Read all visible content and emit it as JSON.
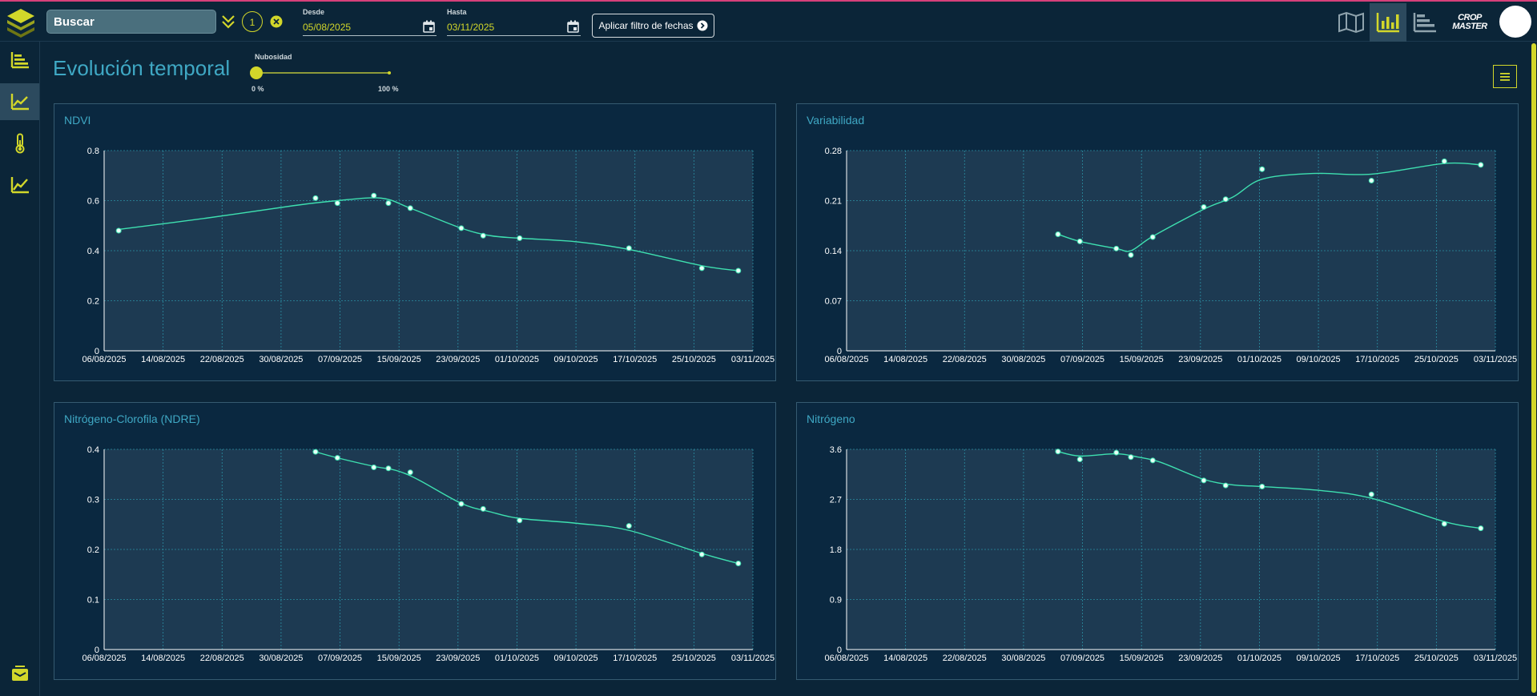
{
  "header": {
    "search_placeholder": "Buscar",
    "selection_count": "1",
    "date_from": {
      "label": "Desde",
      "value": "05/08/2025"
    },
    "date_to": {
      "label": "Hasta",
      "value": "03/11/2025"
    },
    "apply_label": "Aplicar filtro de fechas",
    "brand_line1": "CROP",
    "brand_line2": "MASTER"
  },
  "page": {
    "title": "Evolución temporal",
    "cloud_slider": {
      "label": "Nubosidad",
      "min_label": "0 %",
      "max_label": "100 %",
      "value": 0
    }
  },
  "colors": {
    "accent": "#d2d72a",
    "line": "#3ee0b0",
    "title": "#3fa8c4",
    "plot_bg": "#1d3a52"
  },
  "chart_data": [
    {
      "type": "line",
      "title": "NDVI",
      "x_ticks": [
        "06/08/2025",
        "14/08/2025",
        "22/08/2025",
        "30/08/2025",
        "07/09/2025",
        "15/09/2025",
        "23/09/2025",
        "01/10/2025",
        "09/10/2025",
        "17/10/2025",
        "25/10/2025",
        "03/11/2025"
      ],
      "y_ticks": [
        "0",
        "0.2",
        "0.4",
        "0.6",
        "0.8"
      ],
      "xlim": [
        "06/08/2025",
        "03/11/2025"
      ],
      "ylim": [
        0,
        0.8
      ],
      "points": [
        {
          "x": "08/08/2025",
          "y": 0.48
        },
        {
          "x": "04/09/2025",
          "y": 0.61
        },
        {
          "x": "07/09/2025",
          "y": 0.59
        },
        {
          "x": "12/09/2025",
          "y": 0.62
        },
        {
          "x": "14/09/2025",
          "y": 0.59
        },
        {
          "x": "17/09/2025",
          "y": 0.57
        },
        {
          "x": "24/09/2025",
          "y": 0.49
        },
        {
          "x": "27/09/2025",
          "y": 0.46
        },
        {
          "x": "02/10/2025",
          "y": 0.45
        },
        {
          "x": "17/10/2025",
          "y": 0.41
        },
        {
          "x": "27/10/2025",
          "y": 0.33
        },
        {
          "x": "01/11/2025",
          "y": 0.32
        }
      ],
      "trend": [
        {
          "x": "08/08/2025",
          "y": 0.485
        },
        {
          "x": "20/08/2025",
          "y": 0.53
        },
        {
          "x": "01/09/2025",
          "y": 0.58
        },
        {
          "x": "07/09/2025",
          "y": 0.6
        },
        {
          "x": "13/09/2025",
          "y": 0.61
        },
        {
          "x": "17/09/2025",
          "y": 0.57
        },
        {
          "x": "24/09/2025",
          "y": 0.49
        },
        {
          "x": "28/09/2025",
          "y": 0.46
        },
        {
          "x": "02/10/2025",
          "y": 0.45
        },
        {
          "x": "10/10/2025",
          "y": 0.435
        },
        {
          "x": "17/10/2025",
          "y": 0.405
        },
        {
          "x": "27/10/2025",
          "y": 0.34
        },
        {
          "x": "01/11/2025",
          "y": 0.32
        }
      ]
    },
    {
      "type": "line",
      "title": "Variabilidad",
      "x_ticks": [
        "06/08/2025",
        "14/08/2025",
        "22/08/2025",
        "30/08/2025",
        "07/09/2025",
        "15/09/2025",
        "23/09/2025",
        "01/10/2025",
        "09/10/2025",
        "17/10/2025",
        "25/10/2025",
        "03/11/2025"
      ],
      "y_ticks": [
        "0",
        "0.07",
        "0.14",
        "0.21",
        "0.28"
      ],
      "xlim": [
        "06/08/2025",
        "03/11/2025"
      ],
      "ylim": [
        0,
        0.28
      ],
      "points": [
        {
          "x": "04/09/2025",
          "y": 0.163
        },
        {
          "x": "07/09/2025",
          "y": 0.153
        },
        {
          "x": "12/09/2025",
          "y": 0.143
        },
        {
          "x": "14/09/2025",
          "y": 0.134
        },
        {
          "x": "17/09/2025",
          "y": 0.159
        },
        {
          "x": "24/09/2025",
          "y": 0.201
        },
        {
          "x": "27/09/2025",
          "y": 0.212
        },
        {
          "x": "02/10/2025",
          "y": 0.254
        },
        {
          "x": "17/10/2025",
          "y": 0.238
        },
        {
          "x": "27/10/2025",
          "y": 0.265
        },
        {
          "x": "01/11/2025",
          "y": 0.26
        }
      ],
      "trend": [
        {
          "x": "04/09/2025",
          "y": 0.163
        },
        {
          "x": "07/09/2025",
          "y": 0.153
        },
        {
          "x": "12/09/2025",
          "y": 0.143
        },
        {
          "x": "14/09/2025",
          "y": 0.14
        },
        {
          "x": "17/09/2025",
          "y": 0.16
        },
        {
          "x": "24/09/2025",
          "y": 0.198
        },
        {
          "x": "28/09/2025",
          "y": 0.215
        },
        {
          "x": "02/10/2025",
          "y": 0.24
        },
        {
          "x": "09/10/2025",
          "y": 0.248
        },
        {
          "x": "17/10/2025",
          "y": 0.247
        },
        {
          "x": "27/10/2025",
          "y": 0.262
        },
        {
          "x": "01/11/2025",
          "y": 0.26
        }
      ]
    },
    {
      "type": "line",
      "title": "Nitrógeno-Clorofila (NDRE)",
      "x_ticks": [
        "06/08/2025",
        "14/08/2025",
        "22/08/2025",
        "30/08/2025",
        "07/09/2025",
        "15/09/2025",
        "23/09/2025",
        "01/10/2025",
        "09/10/2025",
        "17/10/2025",
        "25/10/2025",
        "03/11/2025"
      ],
      "y_ticks": [
        "0",
        "0.1",
        "0.2",
        "0.3",
        "0.4"
      ],
      "xlim": [
        "06/08/2025",
        "03/11/2025"
      ],
      "ylim": [
        0,
        0.4
      ],
      "points": [
        {
          "x": "04/09/2025",
          "y": 0.395
        },
        {
          "x": "07/09/2025",
          "y": 0.383
        },
        {
          "x": "12/09/2025",
          "y": 0.364
        },
        {
          "x": "14/09/2025",
          "y": 0.362
        },
        {
          "x": "17/09/2025",
          "y": 0.354
        },
        {
          "x": "24/09/2025",
          "y": 0.291
        },
        {
          "x": "27/09/2025",
          "y": 0.281
        },
        {
          "x": "02/10/2025",
          "y": 0.258
        },
        {
          "x": "17/10/2025",
          "y": 0.247
        },
        {
          "x": "27/10/2025",
          "y": 0.19
        },
        {
          "x": "01/11/2025",
          "y": 0.172
        }
      ],
      "trend": [
        {
          "x": "04/09/2025",
          "y": 0.395
        },
        {
          "x": "07/09/2025",
          "y": 0.383
        },
        {
          "x": "12/09/2025",
          "y": 0.366
        },
        {
          "x": "15/09/2025",
          "y": 0.358
        },
        {
          "x": "18/09/2025",
          "y": 0.34
        },
        {
          "x": "24/09/2025",
          "y": 0.292
        },
        {
          "x": "28/09/2025",
          "y": 0.275
        },
        {
          "x": "02/10/2025",
          "y": 0.262
        },
        {
          "x": "10/10/2025",
          "y": 0.252
        },
        {
          "x": "17/10/2025",
          "y": 0.238
        },
        {
          "x": "27/10/2025",
          "y": 0.192
        },
        {
          "x": "01/11/2025",
          "y": 0.172
        }
      ]
    },
    {
      "type": "line",
      "title": "Nitrógeno",
      "x_ticks": [
        "06/08/2025",
        "14/08/2025",
        "22/08/2025",
        "30/08/2025",
        "07/09/2025",
        "15/09/2025",
        "23/09/2025",
        "01/10/2025",
        "09/10/2025",
        "17/10/2025",
        "25/10/2025",
        "03/11/2025"
      ],
      "y_ticks": [
        "0",
        "0.9",
        "1.8",
        "2.7",
        "3.6"
      ],
      "xlim": [
        "06/08/2025",
        "03/11/2025"
      ],
      "ylim": [
        0,
        3.6
      ],
      "points": [
        {
          "x": "04/09/2025",
          "y": 3.56
        },
        {
          "x": "07/09/2025",
          "y": 3.42
        },
        {
          "x": "12/09/2025",
          "y": 3.54
        },
        {
          "x": "14/09/2025",
          "y": 3.46
        },
        {
          "x": "17/09/2025",
          "y": 3.4
        },
        {
          "x": "24/09/2025",
          "y": 3.04
        },
        {
          "x": "27/09/2025",
          "y": 2.95
        },
        {
          "x": "02/10/2025",
          "y": 2.93
        },
        {
          "x": "17/10/2025",
          "y": 2.79
        },
        {
          "x": "27/10/2025",
          "y": 2.26
        },
        {
          "x": "01/11/2025",
          "y": 2.18
        }
      ],
      "trend": [
        {
          "x": "04/09/2025",
          "y": 3.56
        },
        {
          "x": "07/09/2025",
          "y": 3.48
        },
        {
          "x": "12/09/2025",
          "y": 3.52
        },
        {
          "x": "15/09/2025",
          "y": 3.46
        },
        {
          "x": "18/09/2025",
          "y": 3.37
        },
        {
          "x": "24/09/2025",
          "y": 3.06
        },
        {
          "x": "28/09/2025",
          "y": 2.96
        },
        {
          "x": "02/10/2025",
          "y": 2.93
        },
        {
          "x": "10/10/2025",
          "y": 2.86
        },
        {
          "x": "17/10/2025",
          "y": 2.72
        },
        {
          "x": "27/10/2025",
          "y": 2.3
        },
        {
          "x": "01/11/2025",
          "y": 2.18
        }
      ]
    }
  ]
}
